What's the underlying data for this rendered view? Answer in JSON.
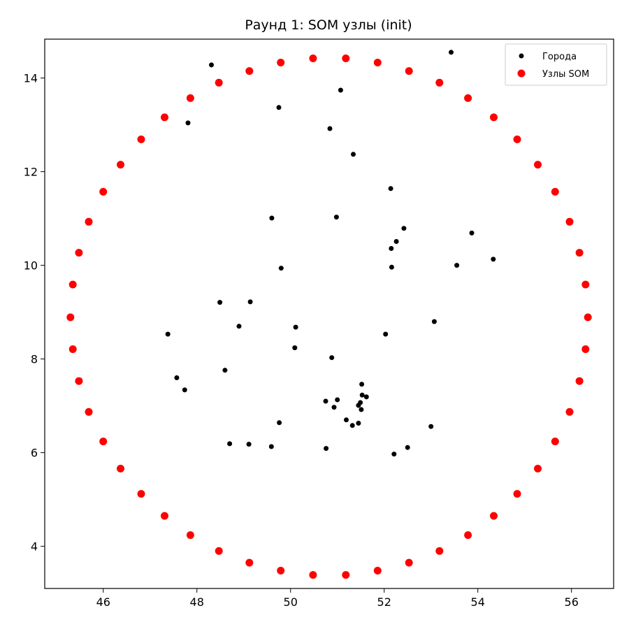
{
  "chart_data": {
    "type": "scatter",
    "title": "Раунд 1: SOM узлы (init)",
    "xlim": [
      44.75,
      56.9
    ],
    "ylim": [
      3.1,
      14.83
    ],
    "x_ticks": [
      46,
      48,
      50,
      52,
      54,
      56
    ],
    "y_ticks": [
      4,
      6,
      8,
      10,
      12,
      14
    ],
    "grid": false,
    "legend_position": "top-right",
    "series": [
      {
        "name": "Города",
        "color": "#000000",
        "marker_size": "small",
        "points": [
          [
            53.43,
            14.55
          ],
          [
            48.31,
            14.28
          ],
          [
            51.07,
            13.74
          ],
          [
            49.75,
            13.37
          ],
          [
            47.81,
            13.04
          ],
          [
            50.84,
            12.92
          ],
          [
            51.34,
            12.37
          ],
          [
            52.14,
            11.64
          ],
          [
            49.6,
            11.01
          ],
          [
            50.98,
            11.03
          ],
          [
            52.42,
            10.79
          ],
          [
            53.87,
            10.69
          ],
          [
            52.26,
            10.51
          ],
          [
            52.15,
            10.36
          ],
          [
            54.33,
            10.13
          ],
          [
            53.55,
            10.0
          ],
          [
            52.16,
            9.96
          ],
          [
            49.8,
            9.94
          ],
          [
            48.49,
            9.21
          ],
          [
            49.14,
            9.22
          ],
          [
            53.07,
            8.8
          ],
          [
            48.9,
            8.7
          ],
          [
            50.11,
            8.68
          ],
          [
            47.38,
            8.53
          ],
          [
            52.03,
            8.53
          ],
          [
            50.09,
            8.24
          ],
          [
            50.88,
            8.03
          ],
          [
            48.6,
            7.76
          ],
          [
            47.57,
            7.6
          ],
          [
            47.74,
            7.34
          ],
          [
            51.52,
            7.46
          ],
          [
            51.53,
            7.23
          ],
          [
            51.62,
            7.19
          ],
          [
            51.49,
            7.07
          ],
          [
            51.45,
            7.01
          ],
          [
            51.0,
            7.13
          ],
          [
            50.75,
            7.1
          ],
          [
            50.93,
            6.97
          ],
          [
            51.51,
            6.92
          ],
          [
            51.19,
            6.7
          ],
          [
            51.32,
            6.58
          ],
          [
            51.45,
            6.63
          ],
          [
            49.76,
            6.64
          ],
          [
            53.0,
            6.56
          ],
          [
            48.7,
            6.19
          ],
          [
            49.11,
            6.18
          ],
          [
            49.59,
            6.13
          ],
          [
            50.76,
            6.09
          ],
          [
            52.5,
            6.11
          ],
          [
            52.21,
            5.97
          ]
        ]
      },
      {
        "name": "Узлы SOM",
        "color": "#ff0000",
        "marker_size": "large",
        "points": [
          [
            50.48,
            14.42
          ],
          [
            51.18,
            14.42
          ],
          [
            51.86,
            14.33
          ],
          [
            52.53,
            14.15
          ],
          [
            53.18,
            13.9
          ],
          [
            53.79,
            13.57
          ],
          [
            54.34,
            13.16
          ],
          [
            54.84,
            12.69
          ],
          [
            55.28,
            12.15
          ],
          [
            55.65,
            11.57
          ],
          [
            55.96,
            10.93
          ],
          [
            56.17,
            10.27
          ],
          [
            56.3,
            9.59
          ],
          [
            56.35,
            8.89
          ],
          [
            56.3,
            8.21
          ],
          [
            56.17,
            7.53
          ],
          [
            55.96,
            6.87
          ],
          [
            55.65,
            6.24
          ],
          [
            55.28,
            5.66
          ],
          [
            54.84,
            5.12
          ],
          [
            54.34,
            4.65
          ],
          [
            53.79,
            4.24
          ],
          [
            53.18,
            3.9
          ],
          [
            52.53,
            3.65
          ],
          [
            51.86,
            3.48
          ],
          [
            51.18,
            3.39
          ],
          [
            50.48,
            3.39
          ],
          [
            49.79,
            3.48
          ],
          [
            49.12,
            3.65
          ],
          [
            48.47,
            3.9
          ],
          [
            47.86,
            4.24
          ],
          [
            47.31,
            4.65
          ],
          [
            46.81,
            5.12
          ],
          [
            46.37,
            5.66
          ],
          [
            46.0,
            6.24
          ],
          [
            45.69,
            6.87
          ],
          [
            45.48,
            7.53
          ],
          [
            45.35,
            8.21
          ],
          [
            45.3,
            8.89
          ],
          [
            45.35,
            9.59
          ],
          [
            45.48,
            10.27
          ],
          [
            45.69,
            10.93
          ],
          [
            46.0,
            11.57
          ],
          [
            46.37,
            12.15
          ],
          [
            46.81,
            12.69
          ],
          [
            47.31,
            13.16
          ],
          [
            47.86,
            13.57
          ],
          [
            48.47,
            13.9
          ],
          [
            49.12,
            14.15
          ],
          [
            49.79,
            14.33
          ]
        ]
      }
    ]
  }
}
